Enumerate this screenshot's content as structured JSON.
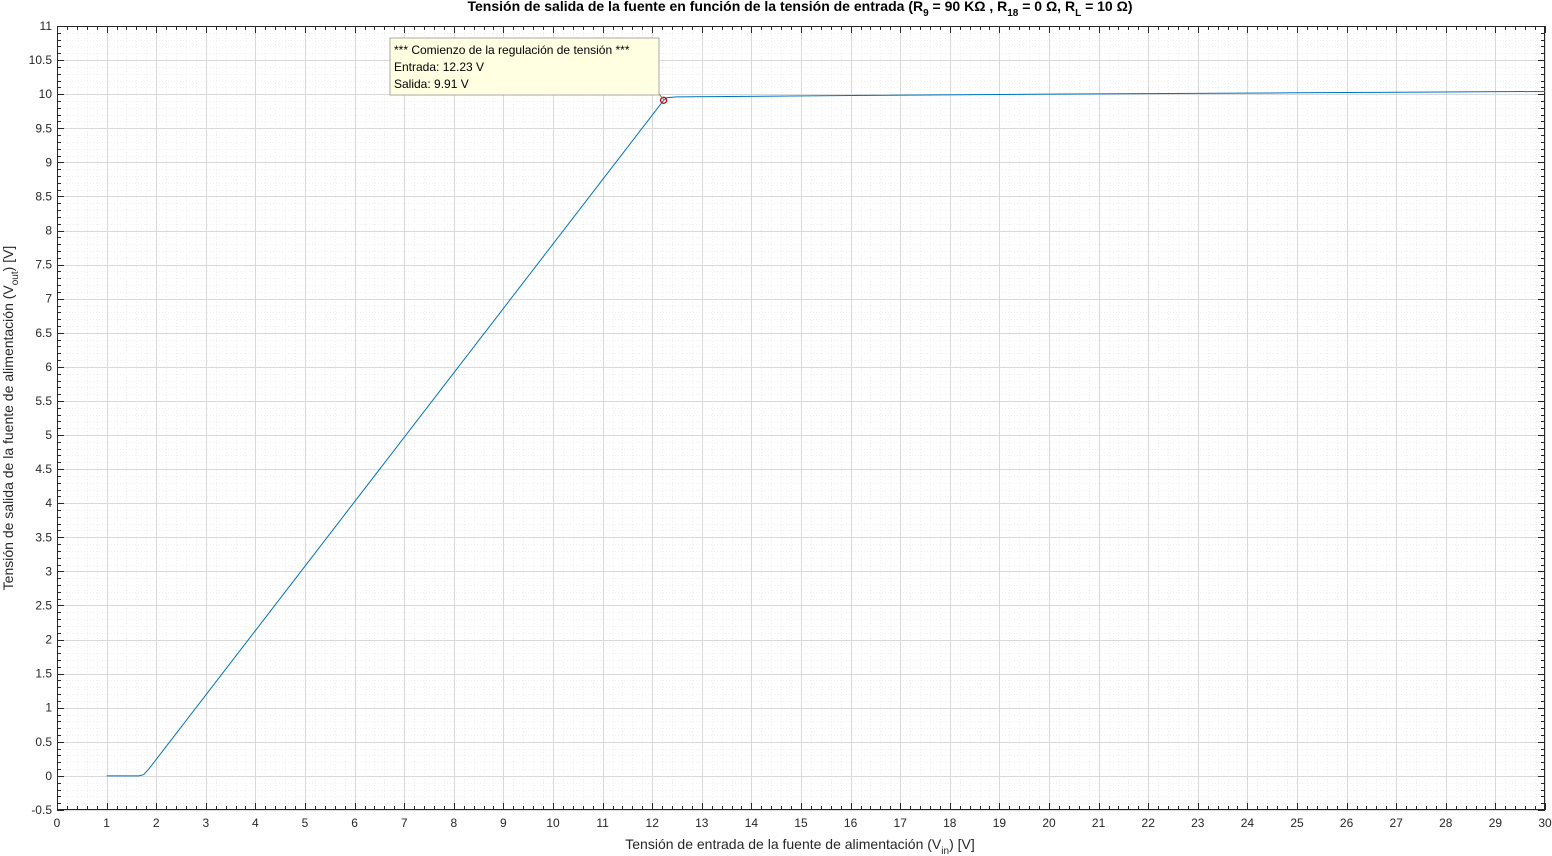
{
  "chart_data": {
    "type": "line",
    "title": {
      "prefix": "Tensión de salida de la fuente en función de la tensión de entrada (R",
      "sub1": "9",
      "mid1": " = 90 KΩ , R",
      "sub2": "18",
      "mid2": " = 0 Ω, R",
      "sub3": "L",
      "suffix": " = 10 Ω)"
    },
    "xlabel": {
      "prefix": "Tensión de entrada de la fuente de alimentación (V",
      "sub": "in",
      "suffix": ") [V]"
    },
    "ylabel": {
      "prefix": "Tensión de salida de la fuente de alimentación (V",
      "sub": "out",
      "suffix": ") [V]"
    },
    "xlim": [
      0,
      30
    ],
    "ylim": [
      -0.5,
      11
    ],
    "xticks": [
      0,
      1,
      2,
      3,
      4,
      5,
      6,
      7,
      8,
      9,
      10,
      11,
      12,
      13,
      14,
      15,
      16,
      17,
      18,
      19,
      20,
      21,
      22,
      23,
      24,
      25,
      26,
      27,
      28,
      29,
      30
    ],
    "yticks": [
      -0.5,
      0,
      0.5,
      1,
      1.5,
      2,
      2.5,
      3,
      3.5,
      4,
      4.5,
      5,
      5.5,
      6,
      6.5,
      7,
      7.5,
      8,
      8.5,
      9,
      9.5,
      10,
      10.5,
      11
    ],
    "grid": true,
    "minor_grid": true,
    "series": [
      {
        "color": "#0072BD",
        "x": [
          1,
          1.65,
          1.75,
          1.85,
          12.23,
          12.3,
          12.5,
          16,
          20,
          25,
          30
        ],
        "y": [
          0,
          0,
          0.02,
          0.1,
          9.91,
          9.95,
          9.96,
          9.98,
          10.0,
          10.02,
          10.04
        ]
      }
    ],
    "marker": {
      "x": 12.23,
      "y": 9.91,
      "color": "#D00000"
    },
    "datatip": {
      "line1": "*** Comienzo de la regulación de tensión ***",
      "line2": "Entrada: 12.23 V",
      "line3": "Salida: 9.91 V"
    }
  }
}
